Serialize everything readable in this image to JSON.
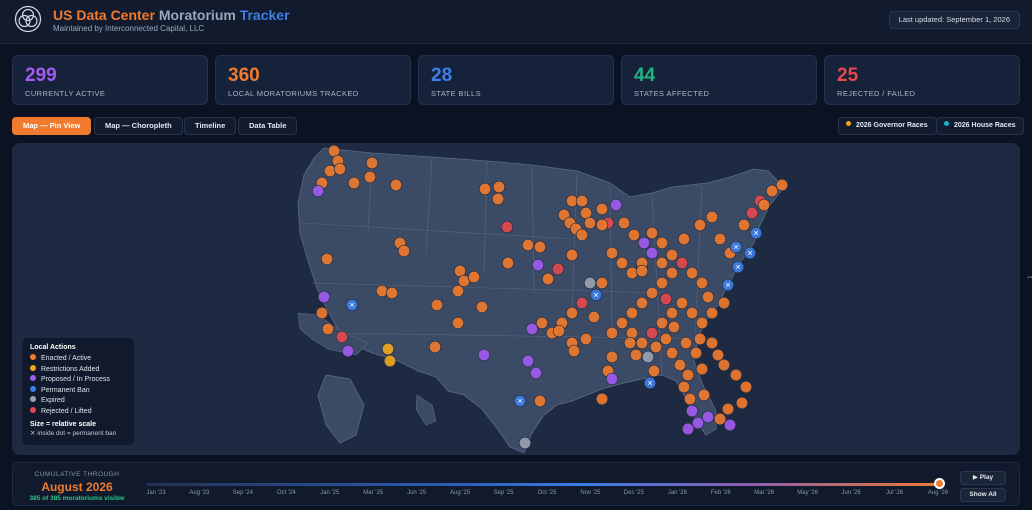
{
  "header": {
    "title_part1": "US Data Center",
    "title_part2": "Moratorium",
    "title_part3": "Tracker",
    "subtitle": "Maintained by Interconnected Capital, LLC",
    "last_updated": "Last updated: September 1, 2026"
  },
  "stats": [
    {
      "value": "299",
      "label": "CURRENTLY ACTIVE",
      "color": "#a35bf0"
    },
    {
      "value": "360",
      "label": "LOCAL MORATORIUMS TRACKED",
      "color": "#f07a2e"
    },
    {
      "value": "28",
      "label": "STATE BILLS",
      "color": "#3d7ee8"
    },
    {
      "value": "44",
      "label": "STATES AFFECTED",
      "color": "#22b37e"
    },
    {
      "value": "25",
      "label": "REJECTED / FAILED",
      "color": "#e5484d"
    }
  ],
  "tabs": [
    {
      "label": "Map — Pin View",
      "active": true
    },
    {
      "label": "Map — Choropleth",
      "active": false
    },
    {
      "label": "Timeline",
      "active": false
    },
    {
      "label": "Data Table",
      "active": false
    }
  ],
  "races": [
    {
      "label": "2026 Governor Races",
      "color": "#f2a81d"
    },
    {
      "label": "2026 House Races",
      "color": "#17b5c9"
    }
  ],
  "legend": {
    "title": "Local Actions",
    "items": [
      {
        "label": "Enacted / Active",
        "color": "#f07a2e"
      },
      {
        "label": "Restrictions Added",
        "color": "#f2a81d"
      },
      {
        "label": "Proposed / In Process",
        "color": "#a35bf0"
      },
      {
        "label": "Permanent Ban",
        "color": "#3d7ee8"
      },
      {
        "label": "Expired",
        "color": "#9aa3b2"
      },
      {
        "label": "Rejected / Lifted",
        "color": "#e5484d"
      }
    ],
    "size_note": "Size = relative scale",
    "x_note": "✕ inside dot = permanent ban"
  },
  "timeline": {
    "caption": "CUMULATIVE THROUGH",
    "month": "August 2026",
    "visible": "385 of 385 moratoriums visible",
    "progress": 1.0,
    "ticks": [
      "Jan '23",
      "Aug '23",
      "Sep '24",
      "Oct '24",
      "Jan '25",
      "Mar '25",
      "Jun '25",
      "Aug '25",
      "Sep '25",
      "Oct '25",
      "Nov '25",
      "Dec '25",
      "Jan '26",
      "Feb '26",
      "Mar '26",
      "May '26",
      "Jun '26",
      "Jul '26",
      "Aug '26"
    ],
    "play_label": "▶ Play",
    "show_all_label": "Show All"
  }
}
